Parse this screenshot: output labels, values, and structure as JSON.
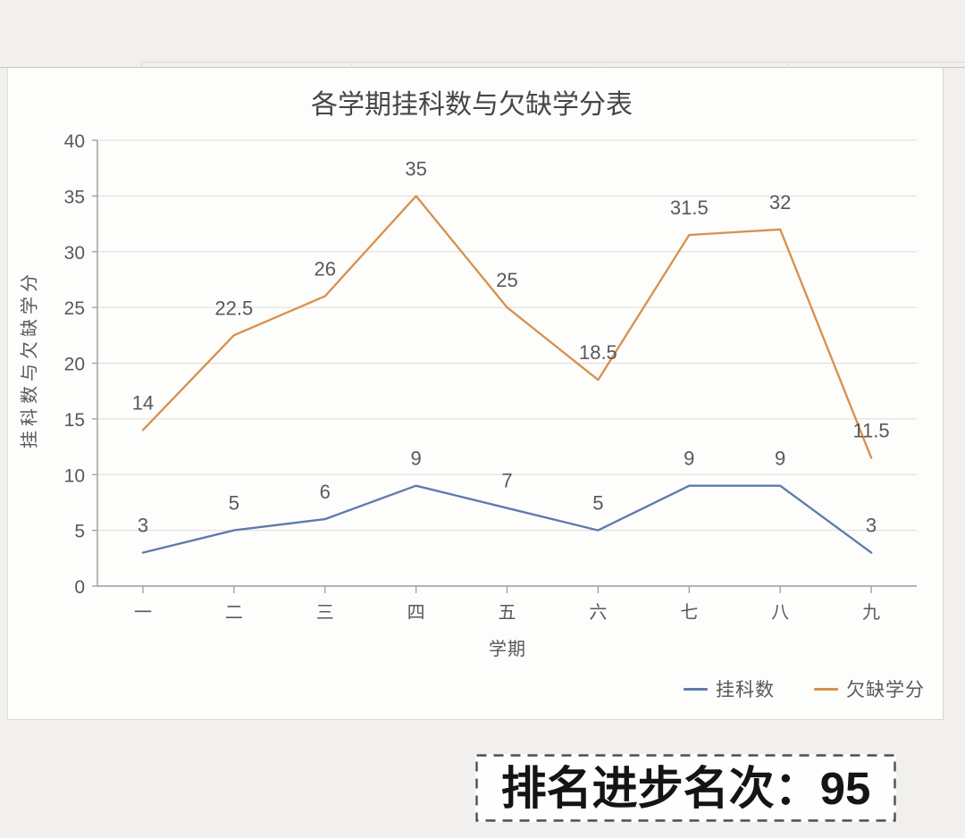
{
  "page": {
    "background": "#f1f0ee",
    "rank_note": {
      "label": "排名进步名次：",
      "value": "95"
    }
  },
  "chart_data": {
    "type": "line",
    "title": "各学期挂科数与欠缺学分表",
    "xlabel": "学期",
    "ylabel": "挂科数与欠缺学分",
    "categories": [
      "一",
      "二",
      "三",
      "四",
      "五",
      "六",
      "七",
      "八",
      "九"
    ],
    "series": [
      {
        "name": "挂科数",
        "color": "#5e7bab",
        "values": [
          3,
          5,
          6,
          9,
          7,
          5,
          9,
          9,
          3
        ]
      },
      {
        "name": "欠缺学分",
        "color": "#d8914e",
        "values": [
          14,
          22.5,
          26,
          35,
          25,
          18.5,
          31.5,
          32,
          11.5
        ]
      }
    ],
    "ylim": [
      0,
      40
    ],
    "ytick_step": 5,
    "grid": true,
    "data_labels": true,
    "legend_position": "bottom-right",
    "colors": {
      "label": "#595959",
      "grid": "#dedcd9",
      "axis": "#9c9c9c"
    }
  }
}
